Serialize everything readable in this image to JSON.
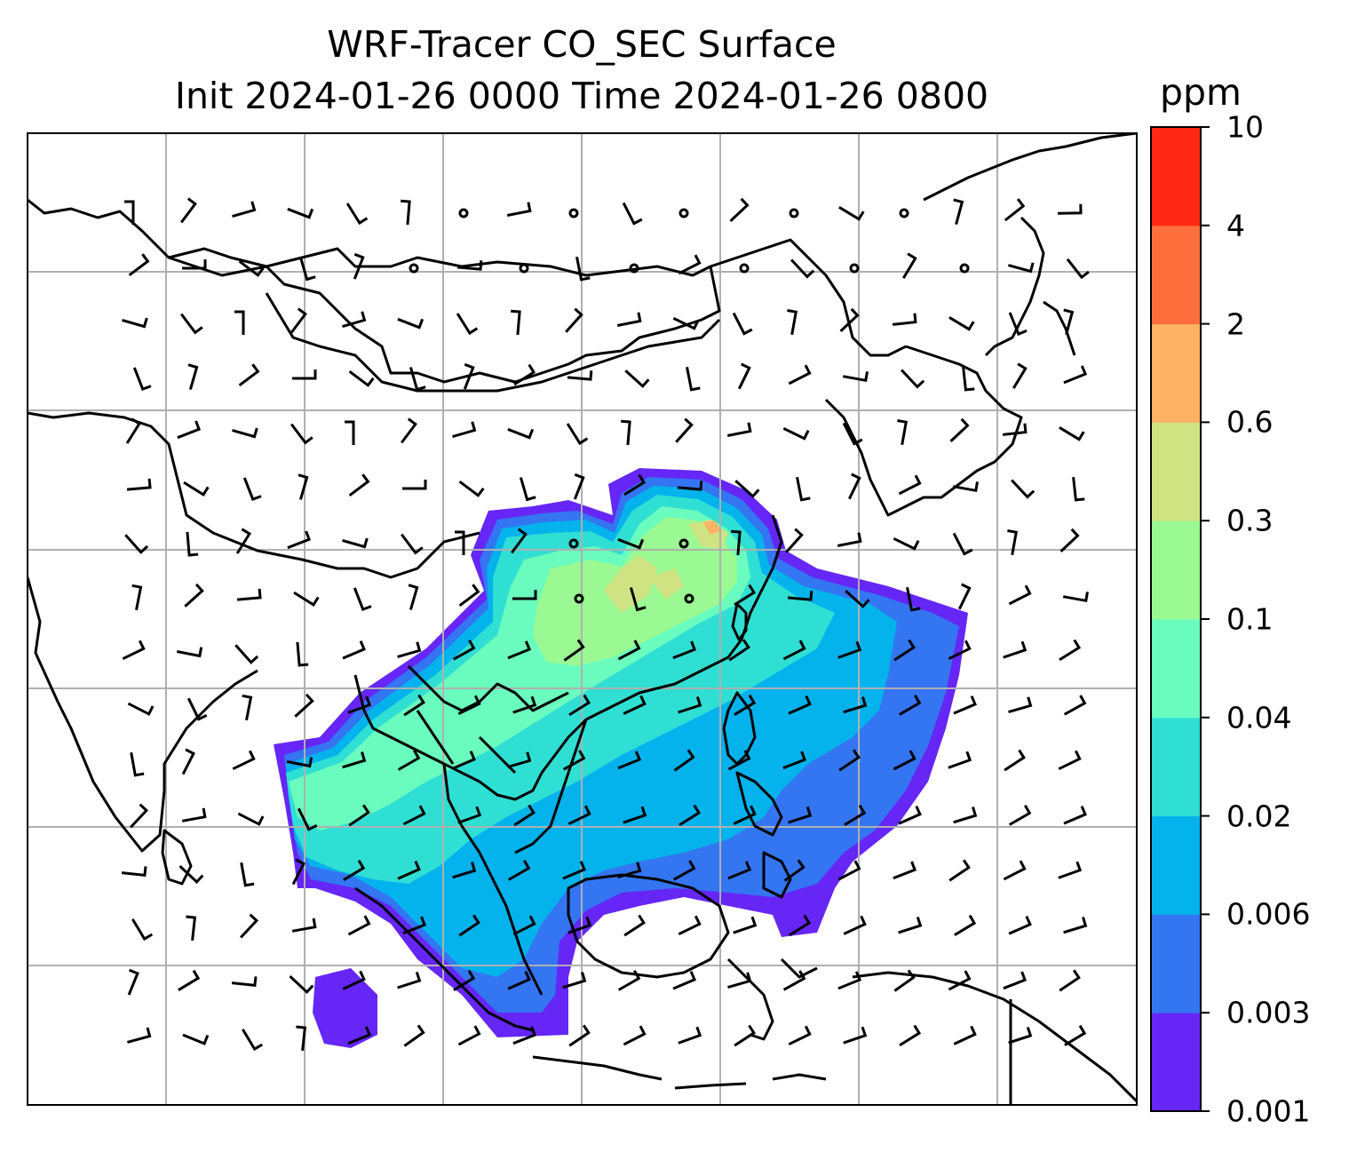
{
  "title": {
    "line1": "WRF-Tracer CO_SEC Surface",
    "line2": "Init 2024-01-26 0000 Time 2024-01-26 0800"
  },
  "colorbar": {
    "unit": "ppm",
    "levels": [
      "0.001",
      "0.003",
      "0.006",
      "0.02",
      "0.04",
      "0.1",
      "0.3",
      "0.6",
      "2",
      "4",
      "10"
    ],
    "colors": [
      "#6526f6",
      "#3475f2",
      "#04b2ec",
      "#30dfd4",
      "#6afcbe",
      "#9af992",
      "#cfe383",
      "#fdb264",
      "#fc6f3c",
      "#fe2814"
    ]
  },
  "map": {
    "gridlines": "on",
    "coastlines_color": "#000000",
    "gridline_color": "#b0b0b0",
    "wind_barb_color": "#000000"
  }
}
